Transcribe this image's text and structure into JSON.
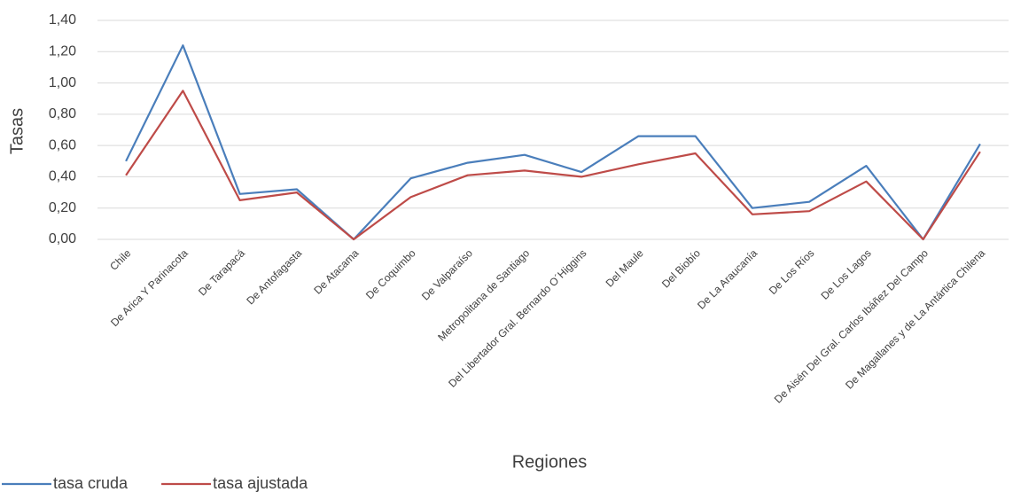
{
  "chart_data": {
    "type": "line",
    "x_label": "Regiones",
    "y_label": "Tasas",
    "categories": [
      "Chile",
      "De Arica Y Parinacota",
      "De Tarapacá",
      "De Antofagasta",
      "De Atacama",
      "De Coquimbo",
      "De Valparaíso",
      "Metropolitana de Santiago",
      "Del Libertador Gral. Bernardo O´Higgins",
      "Del Maule",
      "Del Biobío",
      "De La Araucanía",
      "De Los Ríos",
      "De Los Lagos",
      "De Aisén Del Gral. Carlos Ibáñez Del Campo",
      "De Magallanes y de La Antártica Chilena"
    ],
    "series": [
      {
        "name": "tasa cruda",
        "color": "#4a7ebb",
        "values": [
          0.5,
          1.24,
          0.29,
          0.32,
          0,
          0.39,
          0.49,
          0.54,
          0.43,
          0.66,
          0.66,
          0.2,
          0.24,
          0.47,
          0,
          0.61
        ]
      },
      {
        "name": "tasa ajustada",
        "color": "#be4b48",
        "values": [
          0.41,
          0.95,
          0.25,
          0.3,
          0,
          0.27,
          0.41,
          0.44,
          0.4,
          0.48,
          0.55,
          0.16,
          0.18,
          0.37,
          0,
          0.56
        ]
      }
    ],
    "ylim": [
      0,
      1.4
    ],
    "yticks": [
      {
        "value": 0,
        "label": "0,00"
      },
      {
        "value": 0.2,
        "label": "0,20"
      },
      {
        "value": 0.4,
        "label": "0,40"
      },
      {
        "value": 0.6,
        "label": "0,60"
      },
      {
        "value": 0.8,
        "label": "0,80"
      },
      {
        "value": 1.0,
        "label": "1,00"
      },
      {
        "value": 1.2,
        "label": "1,20"
      },
      {
        "value": 1.4,
        "label": "1,40"
      }
    ],
    "grid": true,
    "legend": "bottom-left"
  }
}
